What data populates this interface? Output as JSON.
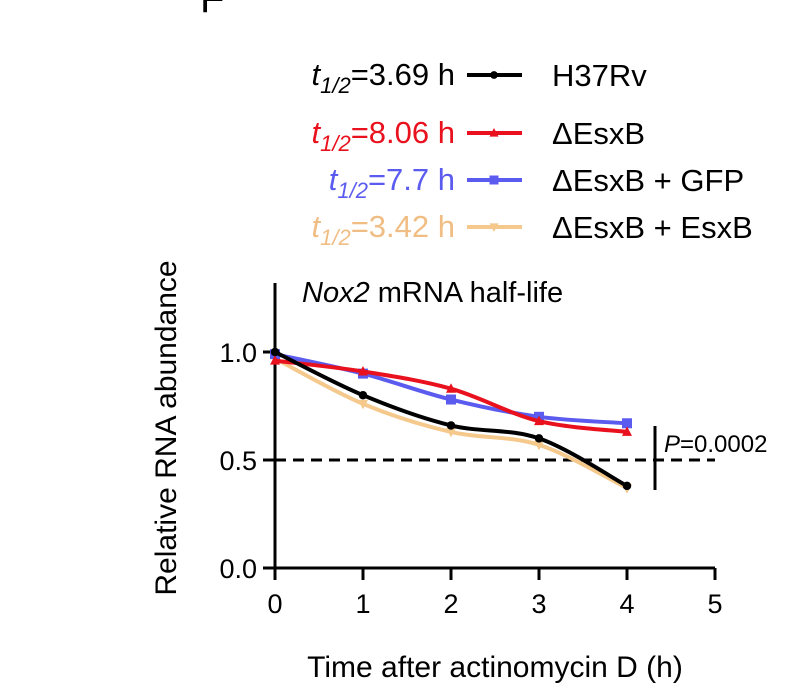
{
  "panel_letter": "F",
  "chart_data": {
    "type": "line",
    "title_italic": "Nox2",
    "title_rest": " mRNA half-life",
    "xlabel": "Time after actinomycin D (h)",
    "ylabel": "Relative RNA abundance",
    "xlim": [
      0,
      5
    ],
    "ylim": [
      0,
      1.25
    ],
    "x_ticks": [
      0,
      1,
      2,
      3,
      4,
      5
    ],
    "x_tick_labels": [
      "0",
      "1",
      "2",
      "3",
      "4",
      "5"
    ],
    "y_ticks": [
      0.0,
      0.5,
      1.0
    ],
    "y_tick_labels": [
      "0.0",
      "0.5",
      "1.0"
    ],
    "reference_line": {
      "y": 0.5,
      "style": "dashed"
    },
    "annotation": {
      "italic": "P",
      "rest": "=0.0002"
    },
    "legend_placement": "top",
    "series": [
      {
        "name": "H37Rv",
        "half_life_prefix": "t",
        "half_life_sub": "1/2",
        "half_life_value": "=3.69 h",
        "color": "#000000",
        "label_color": "#000000",
        "marker": "circle",
        "x": [
          0,
          1,
          2,
          3,
          4
        ],
        "y": [
          1.0,
          0.8,
          0.66,
          0.6,
          0.38
        ]
      },
      {
        "name": "ΔEsxB",
        "half_life_prefix": "t",
        "half_life_sub": "1/2",
        "half_life_value": "=8.06 h",
        "color": "#e8111d",
        "label_color": "#e8111d",
        "marker": "triangle",
        "x": [
          0,
          1,
          2,
          3,
          4
        ],
        "y": [
          0.96,
          0.91,
          0.83,
          0.68,
          0.63
        ]
      },
      {
        "name": "ΔEsxB + GFP",
        "half_life_prefix": "t",
        "half_life_sub": "1/2",
        "half_life_value": "=7.7 h",
        "color": "#5b5bf0",
        "label_color": "#5b5bf0",
        "marker": "square",
        "x": [
          0,
          1,
          2,
          3,
          4
        ],
        "y": [
          0.99,
          0.9,
          0.78,
          0.7,
          0.67
        ]
      },
      {
        "name": "ΔEsxB + EsxB",
        "half_life_prefix": "t",
        "half_life_sub": "1/2",
        "half_life_value": "=3.42 h",
        "color": "#f5c88c",
        "label_color": "#f0be84",
        "marker": "inverted-triangle",
        "x": [
          0,
          1,
          2,
          3,
          4
        ],
        "y": [
          0.97,
          0.76,
          0.63,
          0.57,
          0.37
        ]
      }
    ]
  }
}
